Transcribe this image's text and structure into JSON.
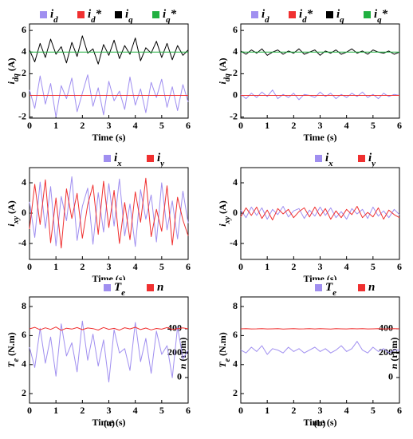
{
  "chart_data": [
    {
      "type": "line",
      "xlabel": "Time (s)",
      "ylabel": "idq (A)",
      "x": [
        0,
        0.2,
        0.4,
        0.6,
        0.8,
        1,
        1.2,
        1.4,
        1.6,
        1.8,
        2,
        2.2,
        2.4,
        2.6,
        2.8,
        3,
        3.2,
        3.4,
        3.6,
        3.8,
        4,
        4.2,
        4.4,
        4.6,
        4.8,
        5,
        5.2,
        5.4,
        5.6,
        5.8,
        6
      ],
      "xlim": [
        0,
        6
      ],
      "xticks": [
        0,
        1,
        2,
        3,
        4,
        5,
        6
      ],
      "ylim": [
        -2.1,
        6.6
      ],
      "yticks": [
        -2,
        0,
        2,
        4,
        6
      ],
      "series": [
        {
          "name": "id",
          "color": "#a08ff0",
          "values": [
            0.5,
            -1.2,
            1.8,
            -0.8,
            1.1,
            -2.0,
            0.9,
            -0.3,
            1.6,
            -1.5,
            0.2,
            1.9,
            -1.0,
            0.7,
            -1.8,
            1.3,
            -0.5,
            0.4,
            -1.3,
            1.7,
            -0.9,
            0.6,
            -1.6,
            1.2,
            -0.2,
            1.5,
            -1.1,
            0.8,
            -1.4,
            1.0,
            -0.6
          ]
        },
        {
          "name": "id*",
          "color": "#f03030",
          "values": [
            0,
            0,
            0,
            0,
            0,
            0,
            0,
            0,
            0,
            0,
            0,
            0,
            0,
            0,
            0,
            0,
            0,
            0,
            0,
            0,
            0,
            0,
            0,
            0,
            0,
            0,
            0,
            0,
            0,
            0,
            0
          ]
        },
        {
          "name": "iq",
          "color": "#000000",
          "values": [
            4.2,
            3.1,
            4.8,
            3.5,
            5.2,
            3.8,
            4.5,
            3.0,
            4.9,
            3.6,
            5.5,
            3.9,
            4.3,
            2.9,
            4.7,
            3.7,
            5.1,
            3.4,
            4.6,
            3.8,
            5.3,
            3.2,
            4.4,
            3.9,
            5.0,
            3.5,
            4.8,
            3.3,
            4.6,
            3.7,
            4.2
          ]
        },
        {
          "name": "iq*",
          "color": "#20b040",
          "values": [
            4,
            4,
            4,
            4,
            4,
            4,
            4,
            4,
            4,
            4,
            4,
            4,
            4,
            4,
            4,
            4,
            4,
            4,
            4,
            4,
            4,
            4,
            4,
            4,
            4,
            4,
            4,
            4,
            4,
            4,
            4
          ]
        }
      ]
    },
    {
      "type": "line",
      "xlabel": "Time (s)",
      "ylabel": "idq (A)",
      "x": [
        0,
        0.2,
        0.4,
        0.6,
        0.8,
        1,
        1.2,
        1.4,
        1.6,
        1.8,
        2,
        2.2,
        2.4,
        2.6,
        2.8,
        3,
        3.2,
        3.4,
        3.6,
        3.8,
        4,
        4.2,
        4.4,
        4.6,
        4.8,
        5,
        5.2,
        5.4,
        5.6,
        5.8,
        6
      ],
      "xlim": [
        0,
        6
      ],
      "xticks": [
        0,
        1,
        2,
        3,
        4,
        5,
        6
      ],
      "ylim": [
        -2.1,
        6.6
      ],
      "yticks": [
        -2,
        0,
        2,
        4,
        6
      ],
      "series": [
        {
          "name": "id",
          "color": "#a08ff0",
          "values": [
            0.1,
            -0.3,
            0.2,
            -0.2,
            0.3,
            -0.1,
            0.5,
            -0.3,
            0.1,
            -0.2,
            0.2,
            -0.4,
            0.1,
            0.0,
            -0.2,
            0.3,
            -0.1,
            0.2,
            -0.3,
            0.1,
            -0.2,
            0.2,
            -0.1,
            0.3,
            -0.2,
            0.1,
            -0.3,
            0.2,
            -0.1,
            0.1,
            0.0
          ]
        },
        {
          "name": "id*",
          "color": "#f03030",
          "values": [
            0,
            0,
            0,
            0,
            0,
            0,
            0,
            0,
            0,
            0,
            0,
            0,
            0,
            0,
            0,
            0,
            0,
            0,
            0,
            0,
            0,
            0,
            0,
            0,
            0,
            0,
            0,
            0,
            0,
            0,
            0
          ]
        },
        {
          "name": "iq",
          "color": "#000000",
          "values": [
            4.1,
            3.8,
            4.2,
            3.9,
            4.3,
            3.7,
            4.0,
            4.2,
            3.8,
            4.1,
            3.9,
            4.3,
            3.8,
            4.0,
            4.2,
            3.7,
            4.1,
            3.9,
            4.2,
            3.8,
            4.0,
            4.3,
            3.9,
            4.1,
            3.8,
            4.2,
            4.0,
            3.9,
            4.1,
            3.8,
            4.0
          ]
        },
        {
          "name": "iq*",
          "color": "#20b040",
          "values": [
            4,
            4,
            4,
            4,
            4,
            4,
            4,
            4,
            4,
            4,
            4,
            4,
            4,
            4,
            4,
            4,
            4,
            4,
            4,
            4,
            4,
            4,
            4,
            4,
            4,
            4,
            4,
            4,
            4,
            4,
            4
          ]
        }
      ]
    },
    {
      "type": "line",
      "xlabel": "Time (s)",
      "ylabel": "ixy (A)",
      "x": [
        0,
        0.2,
        0.4,
        0.6,
        0.8,
        1,
        1.2,
        1.4,
        1.6,
        1.8,
        2,
        2.2,
        2.4,
        2.6,
        2.8,
        3,
        3.2,
        3.4,
        3.6,
        3.8,
        4,
        4.2,
        4.4,
        4.6,
        4.8,
        5,
        5.2,
        5.4,
        5.6,
        5.8,
        6
      ],
      "xlim": [
        0,
        6
      ],
      "xticks": [
        0,
        1,
        2,
        3,
        4,
        5,
        6
      ],
      "ylim": [
        -6.1,
        6.0
      ],
      "yticks": [
        -4,
        0,
        4
      ],
      "series": [
        {
          "name": "ix",
          "color": "#a08ff0",
          "values": [
            1.5,
            -3.2,
            4.1,
            -2.0,
            3.5,
            -4.3,
            2.2,
            -1.0,
            4.8,
            -3.6,
            0.9,
            3.3,
            -4.1,
            2.7,
            -2.5,
            3.9,
            -1.7,
            4.5,
            -3.0,
            1.2,
            -4.4,
            3.1,
            -0.8,
            2.4,
            -3.8,
            4.0,
            -2.2,
            1.6,
            -3.4,
            2.9,
            -1.3
          ]
        },
        {
          "name": "iy",
          "color": "#f03030",
          "values": [
            -2.1,
            3.8,
            -1.5,
            4.4,
            -3.9,
            2.0,
            -4.6,
            3.2,
            -0.7,
            2.6,
            -3.3,
            1.1,
            3.7,
            -2.8,
            4.2,
            -1.9,
            3.0,
            -4.0,
            1.4,
            -3.5,
            2.8,
            -1.2,
            4.6,
            -3.1,
            0.5,
            -2.4,
            3.6,
            -4.2,
            2.1,
            -0.9,
            -3.0
          ]
        }
      ]
    },
    {
      "type": "line",
      "xlabel": "Time (s)",
      "ylabel": "ixy (A)",
      "x": [
        0,
        0.2,
        0.4,
        0.6,
        0.8,
        1,
        1.2,
        1.4,
        1.6,
        1.8,
        2,
        2.2,
        2.4,
        2.6,
        2.8,
        3,
        3.2,
        3.4,
        3.6,
        3.8,
        4,
        4.2,
        4.4,
        4.6,
        4.8,
        5,
        5.2,
        5.4,
        5.6,
        5.8,
        6
      ],
      "xlim": [
        0,
        6
      ],
      "xticks": [
        0,
        1,
        2,
        3,
        4,
        5,
        6
      ],
      "ylim": [
        -6.1,
        6.0
      ],
      "yticks": [
        -4,
        0,
        4
      ],
      "series": [
        {
          "name": "ix",
          "color": "#a08ff0",
          "values": [
            0.4,
            -0.6,
            0.8,
            -0.3,
            0.7,
            -0.8,
            0.5,
            -0.2,
            0.9,
            -0.5,
            0.3,
            0.6,
            -0.7,
            0.4,
            -0.4,
            0.8,
            -0.3,
            0.7,
            -0.6,
            0.2,
            -0.8,
            0.6,
            -0.1,
            0.5,
            -0.7,
            0.8,
            -0.4,
            0.3,
            -0.6,
            0.5,
            -0.2
          ]
        },
        {
          "name": "iy",
          "color": "#f03030",
          "values": [
            -0.5,
            0.7,
            -0.3,
            0.8,
            -0.7,
            0.4,
            -0.9,
            0.6,
            -0.1,
            0.5,
            -0.6,
            0.2,
            0.7,
            -0.5,
            0.8,
            -0.4,
            0.6,
            -0.8,
            0.3,
            -0.6,
            0.5,
            -0.2,
            0.9,
            -0.6,
            0.1,
            -0.5,
            0.7,
            -0.8,
            0.4,
            -0.2,
            -0.6
          ]
        }
      ]
    },
    {
      "type": "line",
      "xlabel": "Time (s)",
      "ylabel": "Te (N.m)",
      "y2label": "n (rpm)",
      "x": [
        0,
        0.2,
        0.4,
        0.6,
        0.8,
        1,
        1.2,
        1.4,
        1.6,
        1.8,
        2,
        2.2,
        2.4,
        2.6,
        2.8,
        3,
        3.2,
        3.4,
        3.6,
        3.8,
        4,
        4.2,
        4.4,
        4.6,
        4.8,
        5,
        5.2,
        5.4,
        5.6,
        5.8,
        6
      ],
      "xlim": [
        0,
        6
      ],
      "xticks": [
        0,
        1,
        2,
        3,
        4,
        5,
        6
      ],
      "ylim": [
        1.35,
        8.66
      ],
      "yticks": [
        2,
        4,
        6,
        8
      ],
      "y2lim": [
        -210,
        662
      ],
      "y2ticks": [
        0,
        200,
        400
      ],
      "series": [
        {
          "name": "Te",
          "color": "#a08ff0",
          "values": [
            5.2,
            3.8,
            6.5,
            4.1,
            5.9,
            3.2,
            6.8,
            4.6,
            5.5,
            3.5,
            7.0,
            4.3,
            6.1,
            3.9,
            5.7,
            2.8,
            6.4,
            4.8,
            5.1,
            3.6,
            6.9,
            4.2,
            5.8,
            3.4,
            6.3,
            4.7,
            5.3,
            3.1,
            6.6,
            4.4,
            5.0
          ]
        },
        {
          "name": "n",
          "color": "#f03030",
          "axis": "y2",
          "values": [
            400,
            412,
            392,
            408,
            395,
            415,
            388,
            405,
            398,
            410,
            393,
            407,
            402,
            390,
            411,
            396,
            404,
            389,
            409,
            399,
            413,
            394,
            406,
            391,
            403,
            397,
            410,
            395,
            401,
            408,
            400
          ]
        }
      ]
    },
    {
      "type": "line",
      "xlabel": "Time (s)",
      "ylabel": "Te (N.m)",
      "y2label": "n (rpm)",
      "x": [
        0,
        0.2,
        0.4,
        0.6,
        0.8,
        1,
        1.2,
        1.4,
        1.6,
        1.8,
        2,
        2.2,
        2.4,
        2.6,
        2.8,
        3,
        3.2,
        3.4,
        3.6,
        3.8,
        4,
        4.2,
        4.4,
        4.6,
        4.8,
        5,
        5.2,
        5.4,
        5.6,
        5.8,
        6
      ],
      "xlim": [
        0,
        6
      ],
      "xticks": [
        0,
        1,
        2,
        3,
        4,
        5,
        6
      ],
      "ylim": [
        1.35,
        8.66
      ],
      "yticks": [
        2,
        4,
        6,
        8
      ],
      "y2lim": [
        -210,
        662
      ],
      "y2ticks": [
        0,
        200,
        400
      ],
      "series": [
        {
          "name": "Te",
          "color": "#a08ff0",
          "values": [
            5.0,
            4.8,
            5.2,
            4.9,
            5.3,
            4.7,
            5.1,
            5.0,
            4.8,
            5.2,
            4.9,
            5.1,
            4.8,
            5.0,
            5.2,
            4.9,
            5.1,
            4.8,
            5.0,
            5.3,
            4.9,
            5.1,
            5.6,
            5.0,
            4.8,
            5.2,
            4.9,
            5.1,
            4.8,
            5.0,
            5.0
          ]
        },
        {
          "name": "n",
          "color": "#f03030",
          "axis": "y2",
          "values": [
            400,
            401,
            399,
            400,
            402,
            399,
            400,
            401,
            398,
            400,
            401,
            399,
            400,
            402,
            399,
            401,
            400,
            398,
            401,
            400,
            399,
            401,
            400,
            402,
            399,
            400,
            401,
            399,
            400,
            401,
            400
          ]
        }
      ]
    }
  ],
  "captions": [
    "(a)",
    "(b)"
  ]
}
